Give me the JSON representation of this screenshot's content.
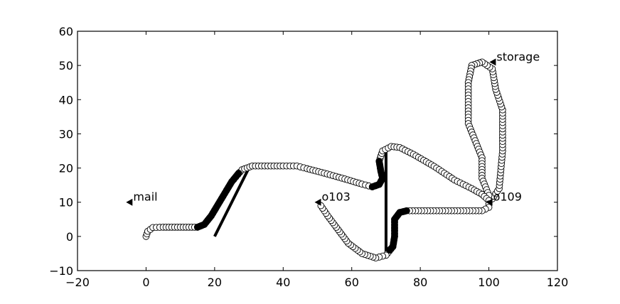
{
  "chart_data": {
    "type": "scatter",
    "title": "",
    "xlabel": "",
    "ylabel": "",
    "xlim": [
      -20,
      120
    ],
    "ylim": [
      -10,
      60
    ],
    "xticks": [
      -20,
      0,
      20,
      40,
      60,
      80,
      100,
      120
    ],
    "yticks": [
      -10,
      0,
      10,
      20,
      30,
      40,
      50,
      60
    ],
    "grid": false,
    "tick_labels": {
      "x": [
        "−20",
        "0",
        "20",
        "40",
        "60",
        "80",
        "100",
        "120"
      ],
      "y": [
        "−10",
        "0",
        "10",
        "20",
        "30",
        "40",
        "50",
        "60"
      ]
    },
    "landmarks": [
      {
        "label": "mail",
        "x": -5,
        "y": 10
      },
      {
        "label": "o103",
        "x": 50,
        "y": 10
      },
      {
        "label": "o109",
        "x": 100,
        "y": 10
      },
      {
        "label": "storage",
        "x": 101,
        "y": 51
      }
    ],
    "walls": [
      {
        "x": [
          20,
          30
        ],
        "y": [
          0,
          20
        ]
      },
      {
        "x": [
          70,
          70
        ],
        "y": [
          -5,
          25
        ]
      }
    ],
    "path_waypoints": [
      [
        0,
        0
      ],
      [
        0.5,
        1.5
      ],
      [
        2,
        2.6
      ],
      [
        5,
        2.7
      ],
      [
        10,
        2.7
      ],
      [
        15,
        2.7
      ],
      [
        17,
        3.5
      ],
      [
        19,
        6
      ],
      [
        22,
        11
      ],
      [
        25,
        16
      ],
      [
        28,
        19.5
      ],
      [
        31,
        20.6
      ],
      [
        40,
        20.6
      ],
      [
        44,
        20.6
      ],
      [
        47,
        19.8
      ],
      [
        52,
        18.5
      ],
      [
        58,
        16.8
      ],
      [
        63,
        15.3
      ],
      [
        66,
        14.5
      ],
      [
        68,
        15.2
      ],
      [
        69,
        17
      ],
      [
        68.5,
        19
      ],
      [
        68,
        22
      ],
      [
        69,
        25
      ],
      [
        71.5,
        26.3
      ],
      [
        74,
        26
      ],
      [
        78,
        24
      ],
      [
        84,
        20.5
      ],
      [
        90,
        16.5
      ],
      [
        95,
        14
      ],
      [
        98,
        12.3
      ],
      [
        100,
        10.5
      ],
      [
        100,
        8.5
      ],
      [
        98,
        7.5
      ],
      [
        90,
        7.5
      ],
      [
        76,
        7.5
      ],
      [
        74,
        7
      ],
      [
        72.5,
        5
      ],
      [
        72.5,
        0
      ],
      [
        72,
        -3
      ],
      [
        70,
        -5.5
      ],
      [
        67,
        -6.3
      ],
      [
        63,
        -5
      ],
      [
        59,
        -2
      ],
      [
        56,
        2
      ],
      [
        53,
        6
      ],
      [
        51,
        9
      ]
    ],
    "loop_waypoints": [
      [
        101,
        11
      ],
      [
        103,
        14
      ],
      [
        104,
        25
      ],
      [
        104,
        37
      ],
      [
        102,
        43
      ],
      [
        101,
        49
      ],
      [
        98,
        51
      ],
      [
        95,
        50
      ],
      [
        94,
        45
      ],
      [
        94,
        33
      ],
      [
        96,
        28
      ],
      [
        98,
        23
      ],
      [
        98,
        17
      ],
      [
        100,
        12
      ]
    ],
    "stopped_segments": [
      [
        [
          15,
          2.7
        ],
        [
          17,
          3.5
        ],
        [
          19,
          6
        ],
        [
          22,
          11
        ],
        [
          25,
          16
        ],
        [
          27,
          18.5
        ]
      ],
      [
        [
          66,
          14.5
        ],
        [
          68,
          15.2
        ],
        [
          69,
          17
        ],
        [
          68.5,
          19
        ],
        [
          68,
          22
        ]
      ],
      [
        [
          76,
          7.5
        ],
        [
          74,
          7
        ],
        [
          72.5,
          5
        ],
        [
          72.5,
          0
        ],
        [
          72,
          -3
        ],
        [
          71,
          -4
        ]
      ]
    ]
  }
}
